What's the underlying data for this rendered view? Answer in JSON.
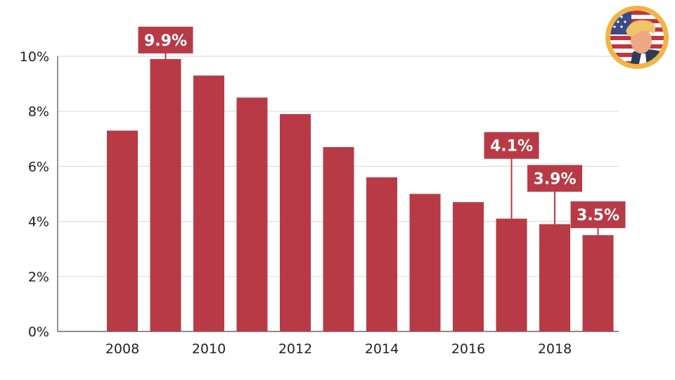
{
  "chart_data": {
    "type": "bar",
    "categories": [
      "2008",
      "2009",
      "2010",
      "2011",
      "2012",
      "2013",
      "2014",
      "2015",
      "2016",
      "2017",
      "2018",
      "2019"
    ],
    "values": [
      7.3,
      9.9,
      9.3,
      8.5,
      7.9,
      6.7,
      5.6,
      5.0,
      4.7,
      4.1,
      3.9,
      3.5
    ],
    "ylim": [
      0,
      10
    ],
    "y_ticks": [
      "0%",
      "2%",
      "4%",
      "6%",
      "8%",
      "10%"
    ],
    "y_tick_values": [
      0,
      2,
      4,
      6,
      8,
      10
    ],
    "x_tick_labels": [
      "2008",
      "2010",
      "2012",
      "2014",
      "2016",
      "2018"
    ],
    "data_labels": [
      {
        "category": "2009",
        "text": "9.9%"
      },
      {
        "category": "2017",
        "text": "4.1%"
      },
      {
        "category": "2018",
        "text": "3.9%"
      },
      {
        "category": "2019",
        "text": "3.5%"
      }
    ],
    "title": "",
    "xlabel": "",
    "ylabel": "",
    "grid": true,
    "legend": "none",
    "colors": {
      "bar": "#b83a46",
      "label_bg": "#b83a46",
      "grid": "#dddddd",
      "axis": "#666666"
    }
  },
  "logo": {
    "icon": "us-flag-portrait-badge-icon",
    "colors": {
      "ring": "#f2b446",
      "flag_red": "#c8323c",
      "flag_blue": "#3b4a86",
      "hair": "#efc46a",
      "skin": "#eea783",
      "suit": "#2a3d57"
    }
  }
}
